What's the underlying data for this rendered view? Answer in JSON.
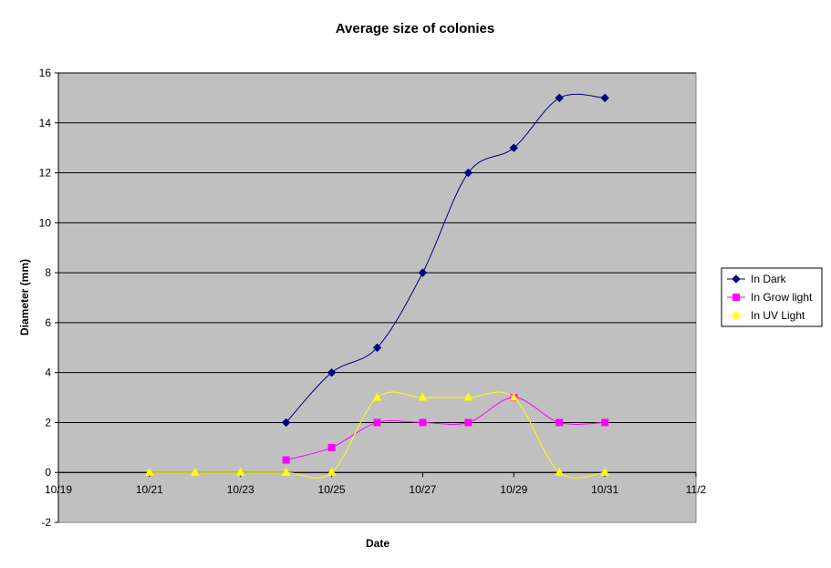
{
  "chart_data": {
    "type": "line",
    "title": "Average size of colonies",
    "xlabel": "Date",
    "ylabel": "Diameter (mm)",
    "x_tick_labels": [
      "10/19",
      "10/21",
      "10/23",
      "10/25",
      "10/27",
      "10/29",
      "10/31",
      "11/2"
    ],
    "y_tick_labels": [
      "-2",
      "0",
      "2",
      "4",
      "6",
      "8",
      "10",
      "12",
      "14",
      "16"
    ],
    "ylim": [
      -2,
      16
    ],
    "xlim": [
      "10/19",
      "11/2"
    ],
    "grid": "horizontal",
    "legend_position": "right",
    "plot_background": "#c0c0c0",
    "series": [
      {
        "name": "In Dark",
        "color": "#000080",
        "marker": "diamond",
        "x": [
          "10/24",
          "10/25",
          "10/26",
          "10/27",
          "10/28",
          "10/29",
          "10/30",
          "10/31"
        ],
        "values": [
          2,
          4,
          5,
          8,
          12,
          13,
          15,
          15
        ]
      },
      {
        "name": "In Grow light",
        "color": "#ff00ff",
        "marker": "square",
        "x": [
          "10/24",
          "10/25",
          "10/26",
          "10/27",
          "10/28",
          "10/29",
          "10/30",
          "10/31"
        ],
        "values": [
          0.5,
          1,
          2,
          2,
          2,
          3,
          2,
          2
        ]
      },
      {
        "name": "In UV Light",
        "color": "#ffff00",
        "marker": "triangle",
        "x": [
          "10/21",
          "10/22",
          "10/23",
          "10/24",
          "10/25",
          "10/26",
          "10/27",
          "10/28",
          "10/29",
          "10/30",
          "10/31"
        ],
        "values": [
          0,
          0,
          0,
          0,
          0,
          3,
          3,
          3,
          3,
          0,
          0
        ]
      }
    ]
  }
}
